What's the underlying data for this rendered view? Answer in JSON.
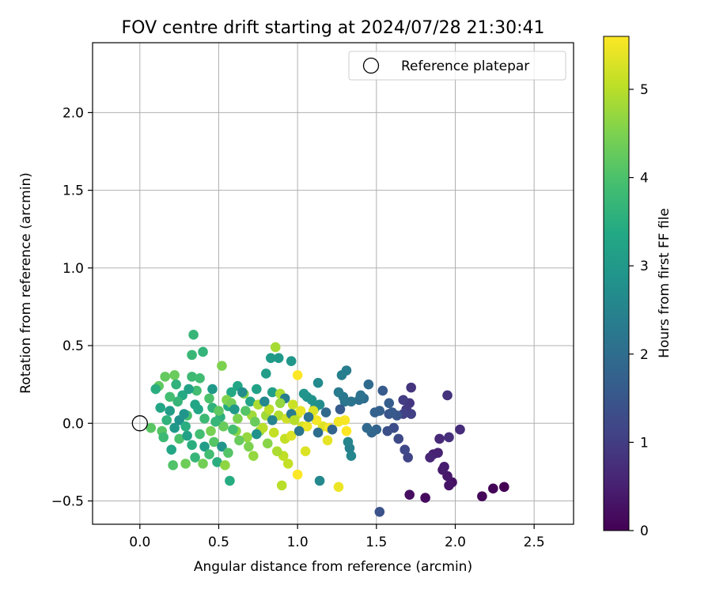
{
  "chart_data": {
    "type": "scatter",
    "title": "FOV centre drift starting at 2024/07/28 21:30:41",
    "xlabel": "Angular distance from reference (arcmin)",
    "ylabel": "Rotation from reference (arcmin)",
    "xlim": [
      -0.3,
      2.75
    ],
    "ylim": [
      -0.65,
      2.45
    ],
    "xticks": [
      0.0,
      0.5,
      1.0,
      1.5,
      2.0,
      2.5
    ],
    "xtick_labels": [
      "0.0",
      "0.5",
      "1.0",
      "1.5",
      "2.0",
      "2.5"
    ],
    "yticks": [
      -0.5,
      0.0,
      0.5,
      1.0,
      1.5,
      2.0
    ],
    "ytick_labels": [
      "−0.5",
      "0.0",
      "0.5",
      "1.0",
      "1.5",
      "2.0"
    ],
    "grid": true,
    "legend": {
      "location": "top-right",
      "entries": [
        "Reference platepar"
      ]
    },
    "reference_point": {
      "x": 0.0,
      "y": 0.0,
      "label": "Reference platepar",
      "marker": "open-circle"
    },
    "colorbar": {
      "label": "Hours from first FF file",
      "colormap": "viridis",
      "range": [
        0,
        5.6
      ],
      "ticks": [
        0,
        1,
        2,
        3,
        4,
        5
      ],
      "tick_labels": [
        "0",
        "1",
        "2",
        "3",
        "4",
        "5"
      ]
    },
    "series": [
      {
        "value_key": "hours_from_first_ff",
        "points": [
          [
            2.31,
            -0.41,
            0.0
          ],
          [
            2.24,
            -0.42,
            0.05
          ],
          [
            2.17,
            -0.47,
            0.1
          ],
          [
            1.81,
            -0.48,
            0.15
          ],
          [
            1.71,
            -0.46,
            0.2
          ],
          [
            1.98,
            -0.38,
            0.25
          ],
          [
            1.96,
            -0.4,
            0.3
          ],
          [
            1.95,
            -0.34,
            0.35
          ],
          [
            1.92,
            -0.3,
            0.4
          ],
          [
            1.93,
            -0.28,
            0.45
          ],
          [
            1.86,
            -0.2,
            0.5
          ],
          [
            1.89,
            -0.19,
            0.55
          ],
          [
            1.84,
            -0.22,
            0.6
          ],
          [
            1.9,
            -0.1,
            0.65
          ],
          [
            2.03,
            -0.04,
            0.7
          ],
          [
            1.96,
            -0.09,
            0.75
          ],
          [
            1.95,
            0.18,
            0.8
          ],
          [
            1.72,
            0.23,
            0.85
          ],
          [
            1.71,
            0.13,
            0.9
          ],
          [
            1.69,
            0.09,
            0.95
          ],
          [
            1.67,
            0.15,
            1.0
          ],
          [
            1.72,
            0.06,
            1.05
          ],
          [
            1.67,
            0.06,
            1.1
          ],
          [
            1.7,
            -0.22,
            1.15
          ],
          [
            1.68,
            -0.17,
            1.2
          ],
          [
            1.64,
            -0.1,
            1.25
          ],
          [
            1.61,
            -0.03,
            1.3
          ],
          [
            1.57,
            -0.05,
            1.35
          ],
          [
            1.52,
            -0.57,
            1.4
          ],
          [
            1.58,
            0.06,
            1.45
          ],
          [
            1.63,
            0.05,
            1.5
          ],
          [
            1.6,
            0.07,
            1.55
          ],
          [
            1.54,
            0.21,
            1.6
          ],
          [
            1.58,
            0.13,
            1.65
          ],
          [
            1.52,
            0.08,
            1.7
          ],
          [
            1.49,
            0.07,
            1.75
          ],
          [
            1.5,
            -0.04,
            1.8
          ],
          [
            1.47,
            -0.06,
            1.85
          ],
          [
            1.44,
            -0.03,
            1.9
          ],
          [
            1.45,
            0.25,
            1.95
          ],
          [
            1.42,
            0.16,
            2.0
          ],
          [
            1.39,
            0.15,
            2.05
          ],
          [
            1.4,
            0.18,
            2.1
          ],
          [
            1.34,
            0.14,
            2.15
          ],
          [
            1.3,
            0.14,
            2.2
          ],
          [
            1.29,
            0.17,
            2.25
          ],
          [
            1.26,
            0.2,
            2.3
          ],
          [
            1.31,
            0.34,
            2.35
          ],
          [
            1.28,
            0.31,
            2.4
          ],
          [
            1.33,
            -0.16,
            2.45
          ],
          [
            1.32,
            -0.12,
            2.5
          ],
          [
            1.34,
            -0.21,
            2.55
          ],
          [
            1.14,
            -0.37,
            2.6
          ],
          [
            1.13,
            0.26,
            2.65
          ],
          [
            1.14,
            0.12,
            2.7
          ],
          [
            1.11,
            0.1,
            2.75
          ],
          [
            1.09,
            0.15,
            2.8
          ],
          [
            1.06,
            0.17,
            2.85
          ],
          [
            1.04,
            0.19,
            2.9
          ],
          [
            0.96,
            0.4,
            2.95
          ],
          [
            0.88,
            0.42,
            3.0
          ],
          [
            0.83,
            0.42,
            3.05
          ],
          [
            0.8,
            0.32,
            3.1
          ],
          [
            0.84,
            0.2,
            3.15
          ],
          [
            0.74,
            0.22,
            3.2
          ],
          [
            0.7,
            0.14,
            3.25
          ],
          [
            0.62,
            0.24,
            3.3
          ],
          [
            0.58,
            0.2,
            3.35
          ],
          [
            0.56,
            0.11,
            3.4
          ],
          [
            0.57,
            -0.37,
            3.45
          ],
          [
            0.49,
            -0.25,
            3.5
          ],
          [
            0.51,
            0.04,
            3.55
          ],
          [
            0.46,
            0.1,
            3.6
          ],
          [
            0.4,
            0.46,
            3.65
          ],
          [
            0.34,
            0.57,
            3.7
          ],
          [
            0.33,
            0.44,
            3.75
          ],
          [
            0.33,
            0.3,
            3.8
          ],
          [
            0.38,
            0.29,
            3.85
          ],
          [
            0.36,
            0.21,
            3.9
          ],
          [
            0.3,
            0.05,
            3.95
          ],
          [
            0.25,
            -0.1,
            4.0
          ],
          [
            0.21,
            -0.27,
            4.05
          ],
          [
            0.14,
            -0.05,
            4.1
          ],
          [
            0.07,
            -0.03,
            4.15
          ],
          [
            0.12,
            0.24,
            4.2
          ],
          [
            0.16,
            0.3,
            4.25
          ],
          [
            0.22,
            0.31,
            4.3
          ],
          [
            0.29,
            -0.26,
            4.35
          ],
          [
            0.4,
            -0.26,
            4.4
          ],
          [
            0.45,
            -0.05,
            4.45
          ],
          [
            0.52,
            0.37,
            4.5
          ],
          [
            0.55,
            0.15,
            4.55
          ],
          [
            0.61,
            -0.05,
            4.6
          ],
          [
            0.54,
            -0.27,
            4.65
          ],
          [
            0.72,
            -0.21,
            4.7
          ],
          [
            0.76,
            -0.05,
            4.75
          ],
          [
            0.8,
            0.05,
            4.8
          ],
          [
            0.86,
            0.49,
            4.85
          ],
          [
            0.89,
            0.19,
            4.9
          ],
          [
            0.88,
            0.05,
            4.95
          ],
          [
            0.9,
            -0.4,
            5.0
          ],
          [
            0.91,
            -0.21,
            5.05
          ],
          [
            0.92,
            -0.1,
            5.1
          ],
          [
            0.97,
            0.12,
            5.15
          ],
          [
            1.0,
            0.06,
            5.2
          ],
          [
            1.03,
            -0.02,
            5.25
          ],
          [
            1.1,
            0.08,
            5.3
          ],
          [
            1.16,
            -0.02,
            5.35
          ],
          [
            1.19,
            -0.11,
            5.4
          ],
          [
            1.26,
            -0.41,
            5.45
          ],
          [
            1.26,
            0.01,
            5.5
          ],
          [
            1.3,
            0.02,
            5.55
          ],
          [
            1.31,
            -0.05,
            5.6
          ],
          [
            1.0,
            0.31,
            5.6
          ],
          [
            1.0,
            -0.33,
            5.58
          ],
          [
            0.25,
            0.02,
            2.8
          ],
          [
            0.28,
            0.06,
            2.9
          ],
          [
            0.22,
            -0.03,
            3.0
          ],
          [
            0.19,
            0.08,
            3.1
          ],
          [
            0.3,
            -0.08,
            3.2
          ],
          [
            0.35,
            0.12,
            3.3
          ],
          [
            0.27,
            0.18,
            3.4
          ],
          [
            0.33,
            -0.14,
            3.5
          ],
          [
            0.17,
            0.02,
            3.6
          ],
          [
            0.24,
            0.14,
            3.7
          ],
          [
            0.41,
            0.03,
            3.8
          ],
          [
            0.38,
            -0.07,
            3.9
          ],
          [
            0.44,
            0.16,
            4.0
          ],
          [
            0.47,
            -0.12,
            4.1
          ],
          [
            0.5,
            0.08,
            4.2
          ],
          [
            0.53,
            -0.02,
            4.3
          ],
          [
            0.58,
            0.13,
            4.4
          ],
          [
            0.62,
            0.03,
            4.5
          ],
          [
            0.66,
            0.19,
            4.6
          ],
          [
            0.68,
            -0.09,
            4.7
          ],
          [
            0.71,
            0.05,
            4.8
          ],
          [
            0.75,
            0.12,
            4.9
          ],
          [
            0.78,
            -0.03,
            5.0
          ],
          [
            0.82,
            0.09,
            5.05
          ],
          [
            0.85,
            -0.06,
            5.1
          ],
          [
            0.93,
            0.03,
            5.2
          ],
          [
            0.96,
            -0.08,
            5.3
          ],
          [
            1.02,
            0.08,
            5.4
          ],
          [
            1.06,
            -0.02,
            5.45
          ],
          [
            1.12,
            0.02,
            5.5
          ],
          [
            1.2,
            -0.03,
            5.55
          ],
          [
            0.13,
            0.1,
            3.3
          ],
          [
            0.1,
            0.22,
            3.5
          ],
          [
            0.2,
            -0.17,
            3.3
          ],
          [
            0.23,
            0.25,
            3.6
          ],
          [
            0.46,
            0.22,
            3.0
          ],
          [
            0.41,
            -0.15,
            3.1
          ],
          [
            0.52,
            -0.15,
            2.9
          ],
          [
            0.6,
            0.09,
            3.0
          ],
          [
            0.65,
            0.2,
            2.7
          ],
          [
            0.74,
            -0.07,
            2.8
          ],
          [
            0.79,
            0.14,
            2.6
          ],
          [
            0.84,
            0.02,
            2.5
          ],
          [
            0.92,
            0.16,
            2.4
          ],
          [
            0.96,
            0.06,
            2.3
          ],
          [
            1.01,
            -0.05,
            2.2
          ],
          [
            1.07,
            0.04,
            2.1
          ],
          [
            1.13,
            -0.06,
            2.0
          ],
          [
            1.18,
            0.07,
            1.9
          ],
          [
            1.22,
            -0.04,
            1.8
          ],
          [
            1.27,
            0.09,
            1.6
          ],
          [
            0.35,
            -0.22,
            3.7
          ],
          [
            0.44,
            -0.2,
            3.9
          ],
          [
            0.31,
            0.22,
            3.2
          ],
          [
            0.19,
            0.17,
            3.9
          ],
          [
            0.56,
            -0.19,
            4.1
          ],
          [
            0.63,
            -0.11,
            4.3
          ],
          [
            0.69,
            -0.15,
            4.5
          ],
          [
            0.87,
            -0.18,
            4.9
          ],
          [
            0.94,
            -0.26,
            5.1
          ],
          [
            1.05,
            -0.18,
            5.3
          ],
          [
            0.15,
            -0.09,
            3.8
          ],
          [
            0.29,
            -0.02,
            3.5
          ],
          [
            0.37,
            0.09,
            3.3
          ],
          [
            0.48,
            0.01,
            3.7
          ],
          [
            0.59,
            -0.04,
            3.9
          ],
          [
            0.67,
            0.08,
            4.1
          ],
          [
            0.73,
            0.01,
            4.3
          ],
          [
            0.81,
            -0.13,
            4.6
          ],
          [
            0.89,
            0.13,
            4.7
          ],
          [
            0.98,
            0.02,
            5.0
          ]
        ]
      }
    ]
  }
}
